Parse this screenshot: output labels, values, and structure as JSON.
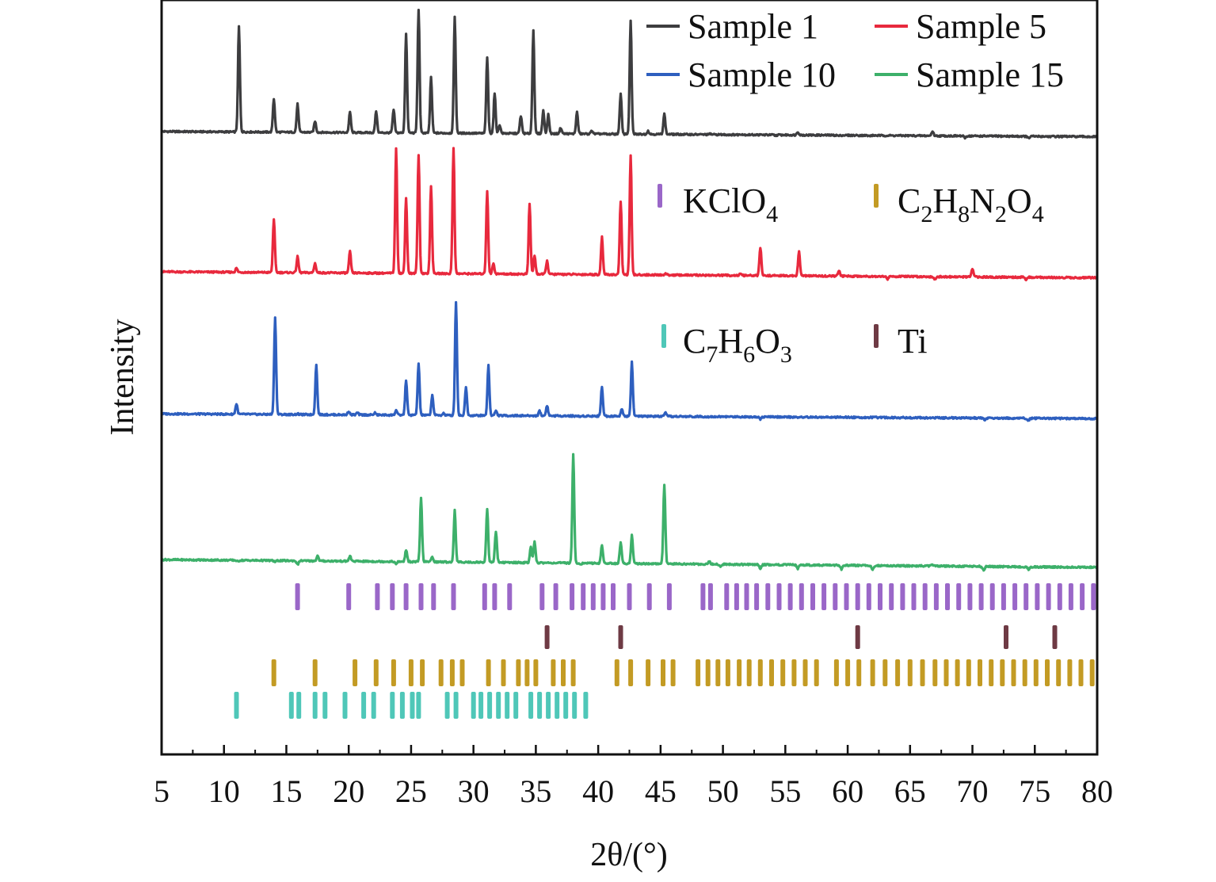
{
  "chart_data": {
    "type": "line",
    "title": "",
    "xlabel": "2θ/(°)",
    "ylabel": "Intensity",
    "xlim": [
      5,
      80
    ],
    "x_ticks": [
      5,
      10,
      15,
      20,
      25,
      30,
      35,
      40,
      45,
      50,
      55,
      60,
      65,
      70,
      75,
      80
    ],
    "y_ticks_shown": false,
    "grid": false,
    "legend_position": "top-right",
    "series": [
      {
        "name": "Sample 1",
        "color": "#3d3d3f",
        "baseline": 0.055,
        "baseline_end": 0.015,
        "peaks": [
          [
            11.2,
            0.86
          ],
          [
            14.0,
            0.31
          ],
          [
            15.9,
            0.27
          ],
          [
            17.3,
            0.14
          ],
          [
            20.1,
            0.21
          ],
          [
            22.2,
            0.22
          ],
          [
            23.6,
            0.23
          ],
          [
            24.6,
            0.81
          ],
          [
            25.6,
            1.0
          ],
          [
            26.6,
            0.48
          ],
          [
            28.5,
            0.95
          ],
          [
            31.1,
            0.63
          ],
          [
            31.7,
            0.36
          ],
          [
            32.1,
            0.12
          ],
          [
            33.8,
            0.19
          ],
          [
            34.8,
            0.85
          ],
          [
            35.6,
            0.23
          ],
          [
            36.0,
            0.2
          ],
          [
            37.0,
            0.1
          ],
          [
            38.3,
            0.22
          ],
          [
            39.5,
            0.08
          ],
          [
            40.8,
            0.05
          ],
          [
            41.8,
            0.36
          ],
          [
            42.6,
            0.92
          ],
          [
            44.0,
            0.08
          ],
          [
            45.3,
            0.21
          ],
          [
            49.0,
            0.06
          ],
          [
            51.5,
            0.06
          ],
          [
            54.2,
            0.05
          ],
          [
            56.0,
            0.08
          ],
          [
            59.3,
            0.05
          ],
          [
            61.7,
            0.05
          ],
          [
            66.8,
            0.09
          ],
          [
            69.4,
            0.04
          ],
          [
            74.5,
            0.04
          ]
        ]
      },
      {
        "name": "Sample 5",
        "color": "#e8293d",
        "baseline": 0.06,
        "baseline_end": 0.015,
        "peaks": [
          [
            11.0,
            0.09
          ],
          [
            14.0,
            0.46
          ],
          [
            15.9,
            0.18
          ],
          [
            17.3,
            0.13
          ],
          [
            20.1,
            0.22
          ],
          [
            23.8,
            1.0
          ],
          [
            24.6,
            0.63
          ],
          [
            25.6,
            0.95
          ],
          [
            26.6,
            0.72
          ],
          [
            28.4,
            1.0
          ],
          [
            31.1,
            0.68
          ],
          [
            31.6,
            0.14
          ],
          [
            34.5,
            0.59
          ],
          [
            34.9,
            0.2
          ],
          [
            35.9,
            0.16
          ],
          [
            37.8,
            0.06
          ],
          [
            40.3,
            0.34
          ],
          [
            41.8,
            0.61
          ],
          [
            42.6,
            0.95
          ],
          [
            45.4,
            0.07
          ],
          [
            48.9,
            0.06
          ],
          [
            51.4,
            0.07
          ],
          [
            53.0,
            0.27
          ],
          [
            56.1,
            0.24
          ],
          [
            59.3,
            0.1
          ],
          [
            63.2,
            0.04
          ],
          [
            67.0,
            0.04
          ],
          [
            70.0,
            0.12
          ],
          [
            74.3,
            0.04
          ]
        ]
      },
      {
        "name": "Sample 10",
        "color": "#2e5fbf",
        "baseline": 0.045,
        "baseline_end": 0.01,
        "peaks": [
          [
            11.0,
            0.12
          ],
          [
            14.1,
            0.75
          ],
          [
            15.9,
            0.05
          ],
          [
            17.4,
            0.41
          ],
          [
            20.0,
            0.07
          ],
          [
            20.7,
            0.06
          ],
          [
            22.1,
            0.06
          ],
          [
            23.8,
            0.08
          ],
          [
            24.6,
            0.3
          ],
          [
            25.6,
            0.42
          ],
          [
            26.7,
            0.19
          ],
          [
            27.6,
            0.06
          ],
          [
            28.6,
            0.87
          ],
          [
            29.4,
            0.25
          ],
          [
            31.2,
            0.41
          ],
          [
            31.8,
            0.08
          ],
          [
            35.3,
            0.08
          ],
          [
            35.9,
            0.12
          ],
          [
            38.5,
            0.04
          ],
          [
            40.3,
            0.26
          ],
          [
            41.9,
            0.1
          ],
          [
            42.7,
            0.44
          ],
          [
            45.4,
            0.07
          ],
          [
            53.0,
            0.03
          ],
          [
            56.1,
            0.04
          ],
          [
            71.0,
            0.03
          ],
          [
            74.5,
            0.03
          ]
        ]
      },
      {
        "name": "Sample 15",
        "color": "#3db06a",
        "baseline": 0.06,
        "baseline_end": 0.0,
        "peaks": [
          [
            11.1,
            0.05
          ],
          [
            14.1,
            0.05
          ],
          [
            15.9,
            0.03
          ],
          [
            17.5,
            0.1
          ],
          [
            20.1,
            0.1
          ],
          [
            23.8,
            0.04
          ],
          [
            24.6,
            0.15
          ],
          [
            25.8,
            0.55
          ],
          [
            26.7,
            0.1
          ],
          [
            28.5,
            0.46
          ],
          [
            31.1,
            0.47
          ],
          [
            31.8,
            0.3
          ],
          [
            34.6,
            0.18
          ],
          [
            34.9,
            0.22
          ],
          [
            35.8,
            0.06
          ],
          [
            38.0,
            0.9
          ],
          [
            38.6,
            0.05
          ],
          [
            40.3,
            0.2
          ],
          [
            41.8,
            0.22
          ],
          [
            42.7,
            0.28
          ],
          [
            45.3,
            0.67
          ],
          [
            48.9,
            0.08
          ],
          [
            49.8,
            0.04
          ],
          [
            53.0,
            0.03
          ],
          [
            56.0,
            0.03
          ],
          [
            59.5,
            0.03
          ],
          [
            62.0,
            0.03
          ],
          [
            66.8,
            0.07
          ],
          [
            70.9,
            0.03
          ],
          [
            74.5,
            0.04
          ]
        ]
      }
    ],
    "reference_phases": [
      {
        "name": "KClO₄",
        "label_parts": [
          "KClO",
          "4"
        ],
        "color": "#9a67c8",
        "lines": [
          15.9,
          20.0,
          22.3,
          23.5,
          24.6,
          25.8,
          26.8,
          28.4,
          30.9,
          31.7,
          32.9,
          35.5,
          36.6,
          37.9,
          38.8,
          39.6,
          40.4,
          41.2,
          42.5,
          44.1,
          45.7,
          48.4,
          49.0,
          50.3,
          51.1,
          51.9,
          52.7,
          53.6,
          54.5,
          55.4,
          56.3,
          57.2,
          58.1,
          59.0,
          59.9,
          60.8,
          61.7,
          62.6,
          63.5,
          64.4,
          65.3,
          66.2,
          67.1,
          68.0,
          68.9,
          69.8,
          70.7,
          71.6,
          72.5,
          73.4,
          74.3,
          75.2,
          76.1,
          77.0,
          77.9,
          78.8,
          79.7
        ]
      },
      {
        "name": "C₂H₈N₂O₄",
        "label_parts": [
          "C",
          "2",
          "H",
          "8",
          "N",
          "2",
          "O",
          "4"
        ],
        "color": "#c39b24",
        "lines": [
          14.0,
          17.3,
          20.5,
          22.2,
          23.6,
          25.0,
          25.9,
          27.4,
          28.3,
          29.1,
          31.2,
          32.4,
          33.6,
          34.3,
          35.0,
          36.4,
          37.2,
          38.0,
          41.5,
          42.6,
          44.0,
          45.2,
          46.0,
          48.0,
          48.8,
          49.6,
          50.4,
          51.3,
          52.1,
          53.0,
          53.9,
          54.8,
          55.7,
          56.6,
          57.5,
          59.1,
          60.0,
          60.9,
          62.0,
          63.0,
          64.0,
          65.0,
          66.0,
          67.0,
          67.9,
          68.8,
          69.7,
          70.6,
          71.5,
          72.4,
          73.3,
          74.2,
          75.1,
          76.0,
          76.9,
          77.8,
          78.7,
          79.6
        ]
      },
      {
        "name": "C₇H₆O₃",
        "label_parts": [
          "C",
          "7",
          "H",
          "6",
          "O",
          "3"
        ],
        "color": "#4fc7b8",
        "lines": [
          11.0,
          15.4,
          16.0,
          17.3,
          18.1,
          19.7,
          21.2,
          22.0,
          23.5,
          24.3,
          25.1,
          25.6,
          27.9,
          28.6,
          30.0,
          30.6,
          31.3,
          32.0,
          32.7,
          33.4,
          34.6,
          35.3,
          36.0,
          36.7,
          37.4,
          38.1,
          39.0
        ]
      },
      {
        "name": "Ti",
        "label_parts": [
          "Ti"
        ],
        "color": "#6e3a44",
        "lines": [
          35.9,
          41.8,
          60.8,
          72.7,
          76.6
        ]
      }
    ]
  }
}
